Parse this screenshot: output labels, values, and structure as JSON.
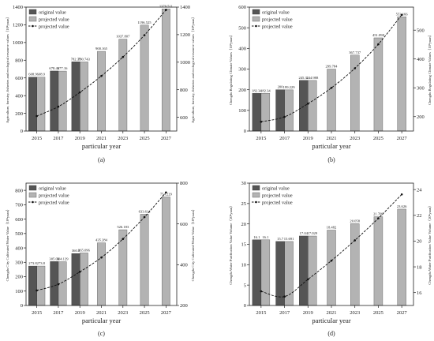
{
  "chart_data": [
    {
      "type": "bar",
      "panel_label": "(a)",
      "categories": [
        "2015",
        "2017",
        "2019",
        "2021",
        "2023",
        "2025",
        "2027"
      ],
      "series": [
        {
          "name": "original value",
          "kind": "bar",
          "color": "#555555",
          "values": [
            608.9,
            678.41,
            782.35,
            null,
            null,
            null,
            null
          ]
        },
        {
          "name": "projected value",
          "kind": "bar",
          "color": "#b3b3b3",
          "values": [
            608.9,
            677.16,
            780.743,
            900.165,
            1037.807,
            1196.525,
            1379.511
          ]
        },
        {
          "name": "projected value",
          "kind": "line",
          "color": "#111111",
          "values": [
            608.9,
            677.16,
            780.743,
            900.165,
            1037.807,
            1196.525,
            1379.511
          ]
        }
      ],
      "data_labels": {
        "original value": [
          "608.9",
          "678.41",
          "782.35"
        ],
        "projected value": [
          "608.9",
          "677.16",
          "780.743",
          "900.165",
          "1037.807",
          "1196.525",
          "1379.511"
        ]
      },
      "xlabel": "particular year",
      "ylabel": "Agriculture, forestry, fisheries and ecological resource values（10⁸yuan）",
      "ylabel_right": "Agriculture, forestry, fisheries and ecological resource values（10⁸yuan）",
      "ylim": [
        0,
        1400
      ],
      "yticks": [
        0,
        200,
        400,
        600,
        800,
        1000,
        1200,
        1400
      ],
      "ylim_right": [
        500,
        1400
      ],
      "yticks_right": [
        600,
        800,
        1000,
        1200,
        1400
      ],
      "legend": "top-left"
    },
    {
      "type": "bar",
      "panel_label": "(b)",
      "categories": [
        "2015",
        "2017",
        "2019",
        "2021",
        "2023",
        "2025",
        "2027"
      ],
      "series": [
        {
          "name": "original value",
          "kind": "bar",
          "color": "#555555",
          "values": [
            182.34,
            200,
            245.31,
            null,
            null,
            null,
            null
          ]
        },
        {
          "name": "projected value",
          "kind": "bar",
          "color": "#b3b3b3",
          "values": [
            182.34,
            199.229,
            244.988,
            299.784,
            367.737,
            451.098,
            553.166
          ]
        },
        {
          "name": "projected value",
          "kind": "line",
          "color": "#111111",
          "values": [
            182.34,
            199.229,
            244.988,
            299.784,
            367.737,
            451.098,
            553.166
          ]
        }
      ],
      "data_labels": {
        "original value": [
          "182.34",
          "200",
          "245.31"
        ],
        "projected value": [
          "182.34",
          "199.229",
          "244.988",
          "299.784",
          "367.737",
          "451.098",
          "553.166"
        ]
      },
      "xlabel": "particular year",
      "ylabel": "Chengdu Regulating Climate Values（10⁸yuan）",
      "ylabel_right": "Chengdu Regulating Climate Values（10⁸yuan）",
      "ylim": [
        0,
        600
      ],
      "yticks": [
        0,
        100,
        200,
        300,
        400,
        500,
        600
      ],
      "ylim_right": [
        150,
        580
      ],
      "yticks_right": [
        200,
        300,
        400,
        500
      ],
      "legend": "top-left"
    },
    {
      "type": "bar",
      "panel_label": "(c)",
      "categories": [
        "2015",
        "2017",
        "2019",
        "2021",
        "2023",
        "2025",
        "2027"
      ],
      "series": [
        {
          "name": "original value",
          "kind": "bar",
          "color": "#555555",
          "values": [
            273.8,
            305.06,
            360.8,
            null,
            null,
            null,
            null
          ]
        },
        {
          "name": "projected value",
          "kind": "bar",
          "color": "#b3b3b3",
          "values": [
            273.8,
            304.129,
            365.096,
            435.284,
            526.183,
            633.614,
            754.229
          ]
        },
        {
          "name": "projected value",
          "kind": "line",
          "color": "#111111",
          "values": [
            273.8,
            304.129,
            365.096,
            435.284,
            526.183,
            633.614,
            754.229
          ]
        }
      ],
      "data_labels": {
        "original value": [
          "273.8",
          "305.06",
          "360.8"
        ],
        "projected value": [
          "273.8",
          "304.129",
          "365.096",
          "435.284",
          "526.183",
          "633.614",
          "754.229"
        ]
      },
      "xlabel": "particular year",
      "ylabel": "Chengdu City Cultivated Water Value（10⁸yuan）",
      "ylabel_right": "Chengdu City Cultivated Water Value（10⁸yuan）",
      "ylim": [
        0,
        850
      ],
      "yticks": [
        0,
        100,
        200,
        300,
        400,
        500,
        600,
        700,
        800
      ],
      "ylim_right": [
        200,
        800
      ],
      "yticks_right": [
        200,
        400,
        600,
        800
      ],
      "legend": "top-left"
    },
    {
      "type": "bar",
      "panel_label": "(d)",
      "categories": [
        "2015",
        "2017",
        "2019",
        "2021",
        "2023",
        "2025",
        "2027"
      ],
      "series": [
        {
          "name": "original value",
          "kind": "bar",
          "color": "#555555",
          "values": [
            16.1,
            15.7,
            17.04,
            null,
            null,
            null,
            null
          ]
        },
        {
          "name": "projected value",
          "kind": "bar",
          "color": "#b3b3b3",
          "values": [
            16.1,
            15.691,
            17.029,
            18.482,
            20.058,
            21.769,
            23.626
          ]
        },
        {
          "name": "projected value",
          "kind": "line",
          "color": "#111111",
          "values": [
            16.1,
            15.691,
            17.029,
            18.482,
            20.058,
            21.769,
            23.626
          ]
        }
      ],
      "data_labels": {
        "original value": [
          "16.1",
          "15.7",
          "17.04"
        ],
        "projected value": [
          "16.1",
          "15.691",
          "17.029",
          "18.482",
          "20.058",
          "21.769",
          "23.626"
        ]
      },
      "xlabel": "particular year",
      "ylabel": "Chengdu Water Purification Value Volume（10⁸yuan）",
      "ylabel_right": "Chengdu Water Purification Value Volume（10⁸yuan）",
      "ylim": [
        0,
        30
      ],
      "yticks": [
        0,
        5,
        10,
        15,
        20,
        25,
        30
      ],
      "ylim_right": [
        15,
        24.5
      ],
      "yticks_right": [
        16,
        18,
        20,
        22,
        24
      ],
      "legend": "top-left"
    }
  ]
}
